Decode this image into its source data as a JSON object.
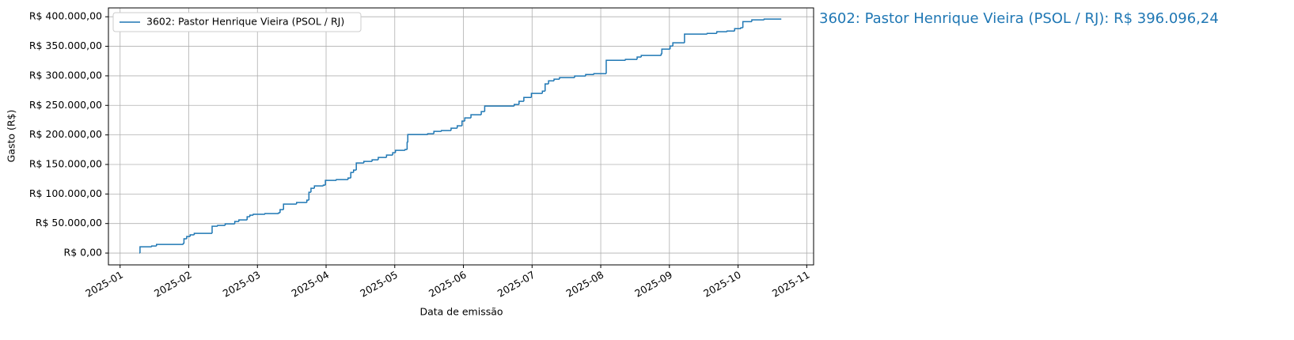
{
  "chart_data": {
    "type": "step",
    "xlabel": "Data de emissão",
    "ylabel": "Gasto (R$)",
    "annotation": "3602: Pastor Henrique Vieira (PSOL / RJ): R$ 396.096,24",
    "legend": "upper left",
    "grid": true,
    "x": [
      1.28,
      1.29,
      1.46,
      1.53,
      1.92,
      1.93,
      1.97,
      2.02,
      2.08,
      2.34,
      2.42,
      2.53,
      2.67,
      2.73,
      2.85,
      2.89,
      2.94,
      3.11,
      3.31,
      3.33,
      3.38,
      3.57,
      3.72,
      3.75,
      3.78,
      3.83,
      3.96,
      3.99,
      4.15,
      4.32,
      4.36,
      4.4,
      4.44,
      4.55,
      4.67,
      4.76,
      4.88,
      4.97,
      5.01,
      5.15,
      5.18,
      5.19,
      5.48,
      5.57,
      5.68,
      5.82,
      5.91,
      5.98,
      6.02,
      6.11,
      6.26,
      6.31,
      6.74,
      6.81,
      6.88,
      6.99,
      7.15,
      7.19,
      7.24,
      7.32,
      7.4,
      7.62,
      7.78,
      7.9,
      8.08,
      8.36,
      8.53,
      8.59,
      8.88,
      8.89,
      9.01,
      9.05,
      9.22,
      9.55,
      9.69,
      9.84,
      9.95,
      10.04,
      10.07,
      10.2,
      10.38,
      10.63
    ],
    "series": [
      {
        "name": "3602: Pastor Henrique Vieira (PSOL / RJ)",
        "color": "#1f77b4",
        "values": [
          0,
          10700,
          12000,
          14700,
          16100,
          24100,
          28100,
          30800,
          33400,
          45500,
          46800,
          49500,
          53500,
          56200,
          61500,
          64200,
          65600,
          66900,
          68200,
          73600,
          82900,
          85600,
          89600,
          103000,
          109700,
          113700,
          115000,
          123100,
          124400,
          127100,
          136500,
          140500,
          152500,
          155200,
          157900,
          161900,
          165900,
          169900,
          173900,
          175300,
          187300,
          200700,
          202000,
          206000,
          207400,
          211400,
          215400,
          223400,
          228800,
          234100,
          239500,
          248800,
          251500,
          256900,
          263500,
          270200,
          274200,
          286300,
          291600,
          294300,
          297000,
          299700,
          302300,
          303700,
          326400,
          327800,
          331800,
          334500,
          337100,
          345200,
          350500,
          355900,
          370600,
          371900,
          374600,
          375900,
          379900,
          381300,
          391700,
          394700,
          396096.24,
          396096.24
        ]
      }
    ],
    "xlim": [
      0.83,
      11.1
    ],
    "xticks": [
      {
        "value": 1,
        "label": "2025-01"
      },
      {
        "value": 2,
        "label": "2025-02"
      },
      {
        "value": 3,
        "label": "2025-03"
      },
      {
        "value": 4,
        "label": "2025-04"
      },
      {
        "value": 5,
        "label": "2025-05"
      },
      {
        "value": 6,
        "label": "2025-06"
      },
      {
        "value": 7,
        "label": "2025-07"
      },
      {
        "value": 8,
        "label": "2025-08"
      },
      {
        "value": 9,
        "label": "2025-09"
      },
      {
        "value": 10,
        "label": "2025-10"
      },
      {
        "value": 11,
        "label": "2025-11"
      }
    ],
    "ylim": [
      -20000,
      415000
    ],
    "yticks": [
      {
        "value": 0,
        "label": "R$ 0,00"
      },
      {
        "value": 50000,
        "label": "R$ 50.000,00"
      },
      {
        "value": 100000,
        "label": "R$ 100.000,00"
      },
      {
        "value": 150000,
        "label": "R$ 150.000,00"
      },
      {
        "value": 200000,
        "label": "R$ 200.000,00"
      },
      {
        "value": 250000,
        "label": "R$ 250.000,00"
      },
      {
        "value": 300000,
        "label": "R$ 300.000,00"
      },
      {
        "value": 350000,
        "label": "R$ 350.000,00"
      },
      {
        "value": 400000,
        "label": "R$ 400.000,00"
      }
    ]
  }
}
